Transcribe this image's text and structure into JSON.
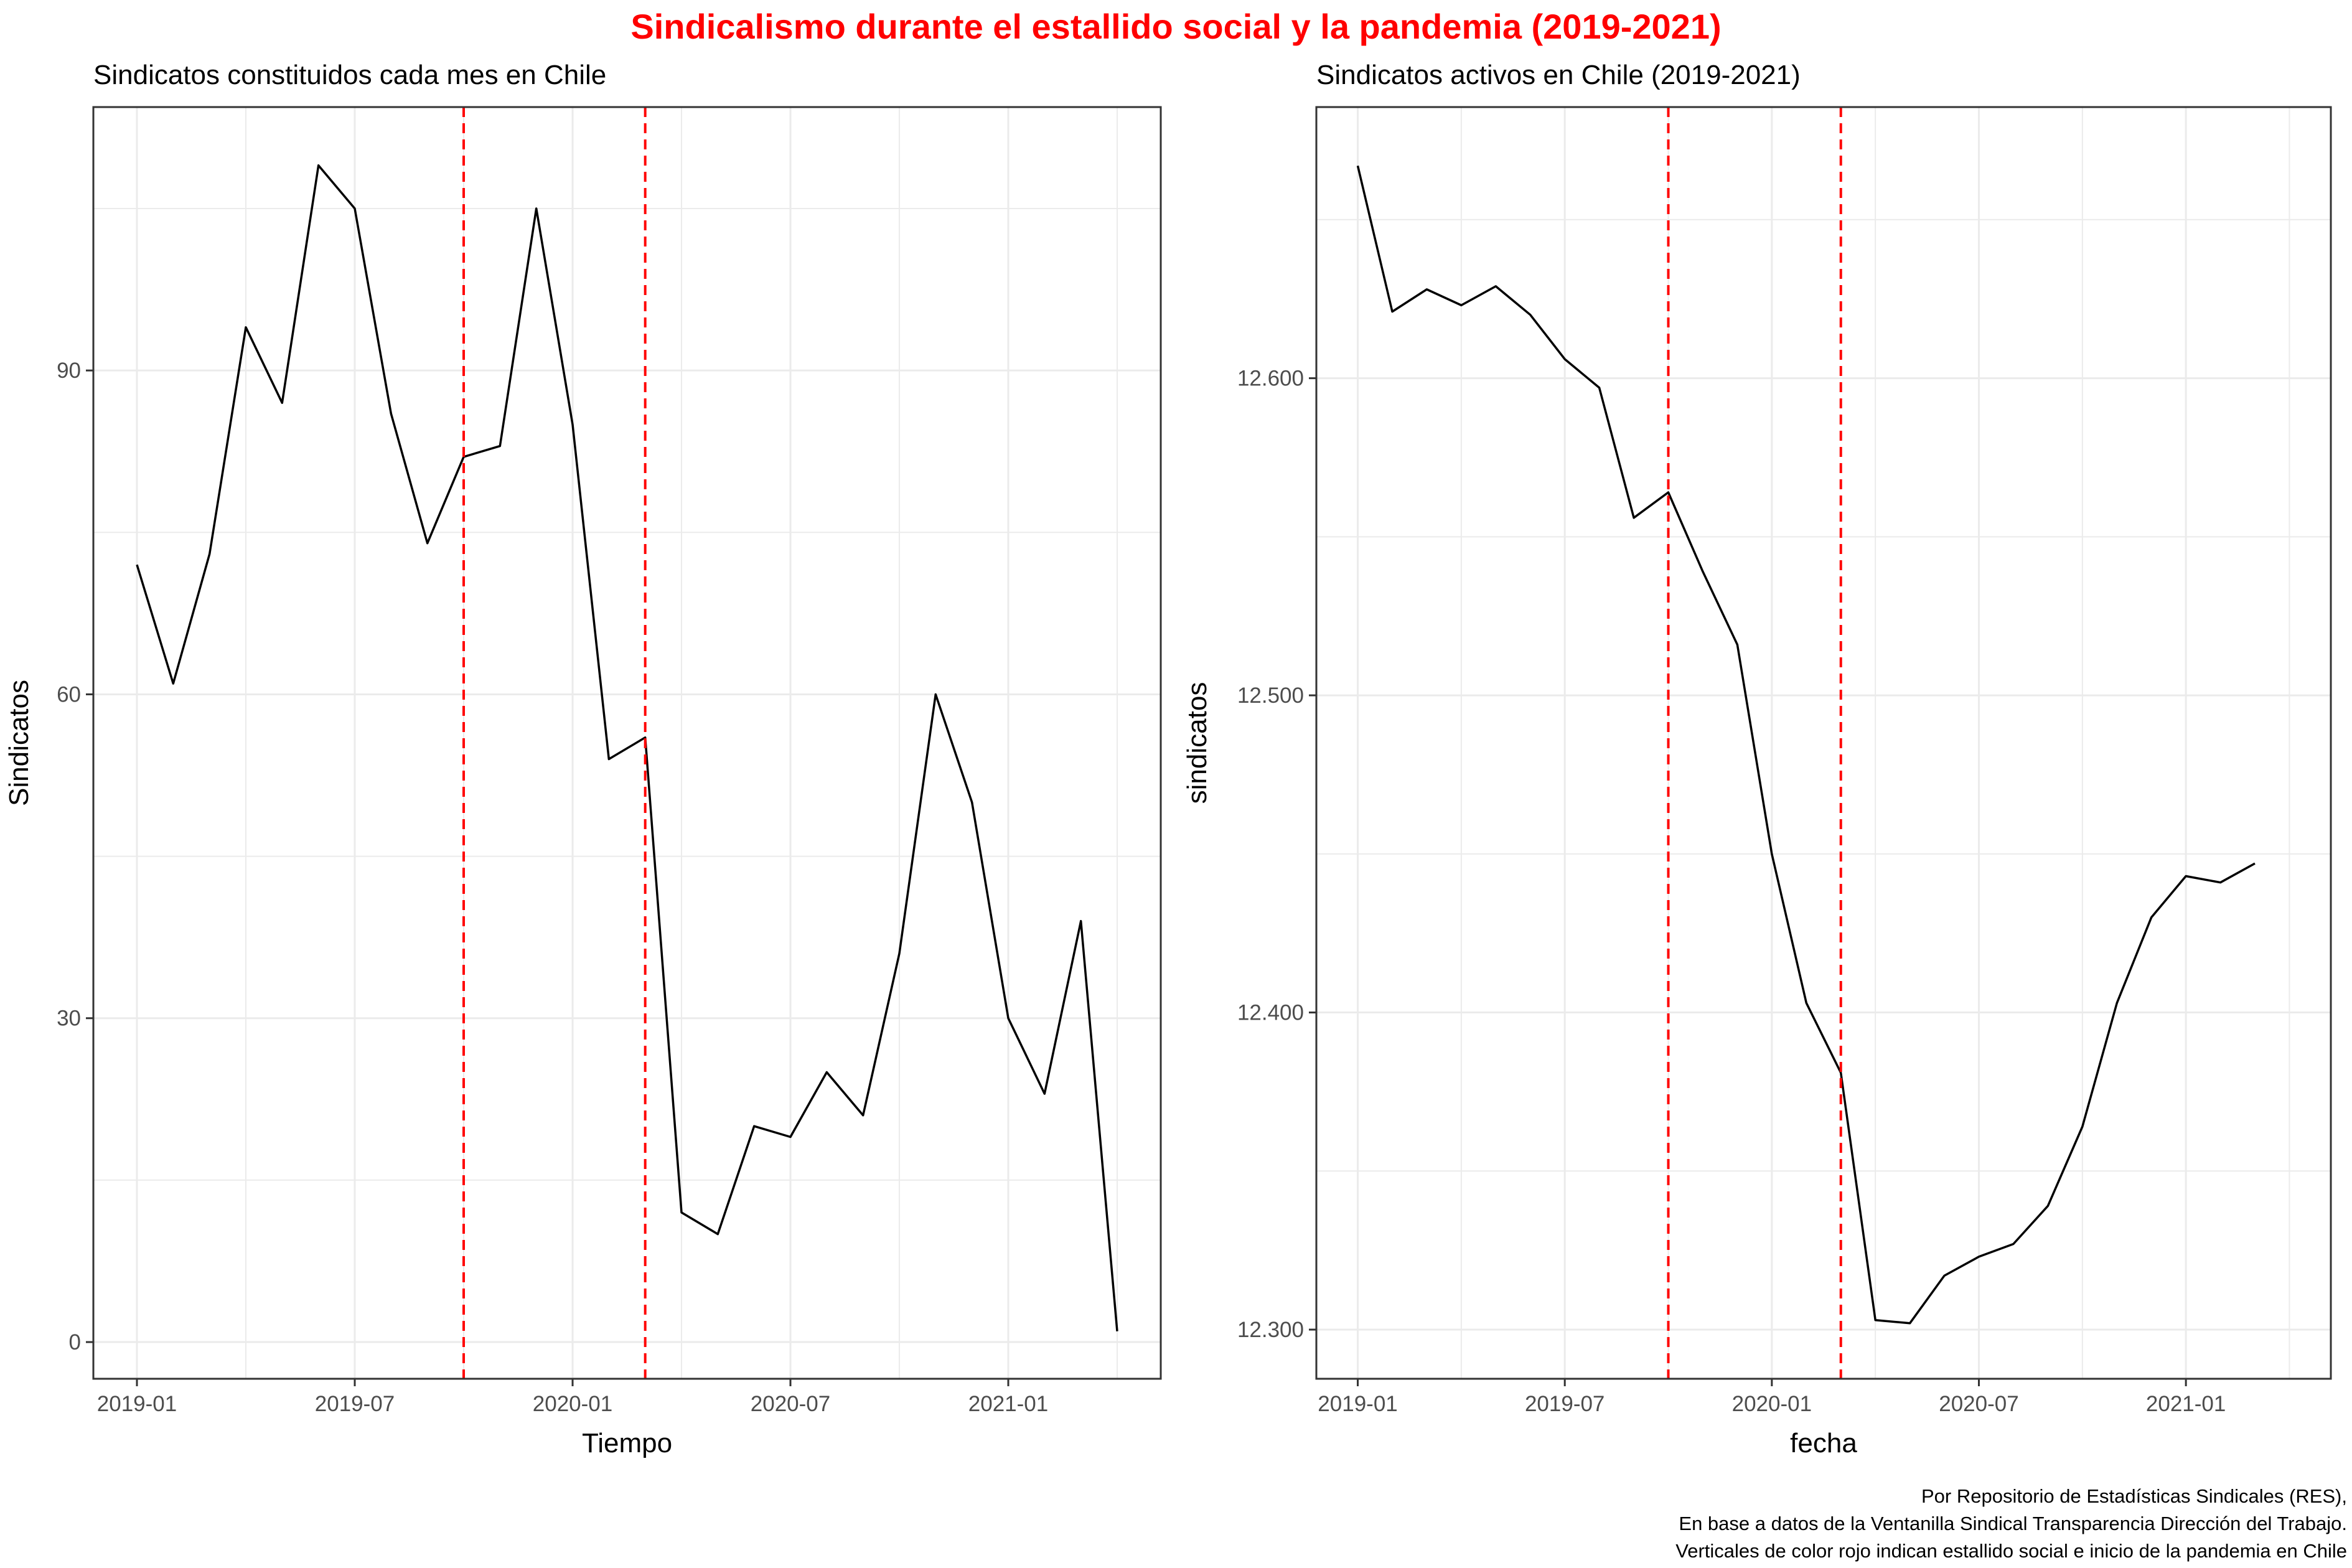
{
  "title": "Sindicalismo durante el estallido social y la pandemia (2019-2021)",
  "caption": [
    "Por Repositorio de Estadísticas Sindicales (RES),",
    "En base a datos de la Ventanilla Sindical Transparencia Dirección del Trabajo.",
    "Verticales de color rojo indican estallido social e inicio de la pandemia en Chile"
  ],
  "colors": {
    "title": "#ff0000",
    "line": "#000000",
    "vline": "#ff0000",
    "grid": "#ebebeb",
    "frame": "#333333"
  },
  "chart_data": [
    {
      "type": "line",
      "title": "Sindicatos constituidos cada mes en Chile",
      "xlabel": "Tiempo",
      "ylabel": "Sindicatos",
      "x": [
        "2019-01",
        "2019-02",
        "2019-03",
        "2019-04",
        "2019-05",
        "2019-06",
        "2019-07",
        "2019-08",
        "2019-09",
        "2019-10",
        "2019-11",
        "2019-12",
        "2020-01",
        "2020-02",
        "2020-03",
        "2020-04",
        "2020-05",
        "2020-06",
        "2020-07",
        "2020-08",
        "2020-09",
        "2020-10",
        "2020-11",
        "2020-12",
        "2021-01",
        "2021-02",
        "2021-03",
        "2021-04"
      ],
      "y": [
        72,
        61,
        73,
        94,
        87,
        109,
        105,
        86,
        74,
        82,
        83,
        105,
        85,
        54,
        56,
        12,
        10,
        20,
        19,
        25,
        21,
        36,
        60,
        50,
        30,
        23,
        39,
        1
      ],
      "xtick_labels": [
        "2019-01",
        "2019-07",
        "2020-01",
        "2020-07",
        "2021-01"
      ],
      "ytick_labels": [
        "0",
        "30",
        "60",
        "90"
      ],
      "yticks": [
        0,
        30,
        60,
        90
      ],
      "ylim": [
        -3.4,
        114.4
      ],
      "vlines": [
        "2019-10",
        "2020-03"
      ],
      "grid": true
    },
    {
      "type": "line",
      "title": "Sindicatos activos en Chile (2019-2021)",
      "xlabel": "fecha",
      "ylabel": "sindicatos",
      "x": [
        "2019-01",
        "2019-02",
        "2019-03",
        "2019-04",
        "2019-05",
        "2019-06",
        "2019-07",
        "2019-08",
        "2019-09",
        "2019-10",
        "2019-11",
        "2019-12",
        "2020-01",
        "2020-02",
        "2020-03",
        "2020-04",
        "2020-05",
        "2020-06",
        "2020-07",
        "2020-08",
        "2020-09",
        "2020-10",
        "2020-11",
        "2020-12",
        "2021-01",
        "2021-02",
        "2021-03"
      ],
      "y": [
        12667,
        12621,
        12628,
        12623,
        12629,
        12620,
        12606,
        12597,
        12556,
        12564,
        12539,
        12516,
        12450,
        12403,
        12381,
        12303,
        12302,
        12317,
        12323,
        12327,
        12339,
        12364,
        12403,
        12430,
        12443,
        12441,
        12447
      ],
      "xtick_labels": [
        "2019-01",
        "2019-07",
        "2020-01",
        "2020-07",
        "2021-01"
      ],
      "ytick_labels": [
        "12.300",
        "12.400",
        "12.500",
        "12.600"
      ],
      "yticks": [
        12300,
        12400,
        12500,
        12600
      ],
      "ylim": [
        12284.5,
        12685.5
      ],
      "vlines": [
        "2019-10",
        "2020-03"
      ],
      "grid": true
    }
  ]
}
